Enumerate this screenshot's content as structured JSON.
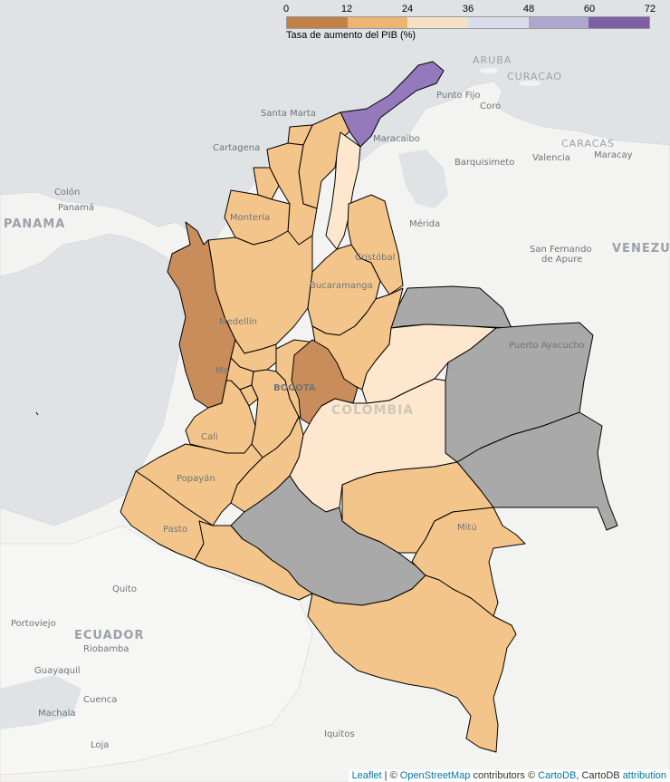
{
  "legend": {
    "title": "Tasa de aumento del PIB (%)",
    "ticks": [
      "0",
      "12",
      "24",
      "36",
      "48",
      "60",
      "72"
    ],
    "colors": [
      "#b35806",
      "#f1a340",
      "#fee0b6",
      "#d8daeb",
      "#998ec3",
      "#542788"
    ]
  },
  "fills": {
    "dark": "#c98c5b",
    "orange": "#f4c58a",
    "light": "#fde8cf",
    "purple": "#9479bd",
    "gray": "#a9a9a9",
    "land": "#f3f3f1",
    "water": "#dfe3e6"
  },
  "labels": {
    "aruba": "ARUBA",
    "curacao": "CURACAO",
    "punto_fijo": "Punto Fijo",
    "coro": "Coro",
    "santa_marta": "Santa Marta",
    "maracaibo": "Maracaibo",
    "cartagena": "Cartagena",
    "caracas": "CARACAS",
    "barquisimeto": "Barquisimeto",
    "valencia": "Valencia",
    "maracay": "Maracay",
    "colon": "Colón",
    "panama_city": "Panamá",
    "panama": "PANAMA",
    "monteria": "Montería",
    "merida": "Mérida",
    "cristobal": "Cristóbal",
    "san_fernando": "San Fernando",
    "de_apure": "de Apure",
    "venezuela": "VENEZUE",
    "bucaramanga": "Bucaramanga",
    "medellin": "Medellín",
    "puerto_ayacucho": "Puerto Ayacucho",
    "manizales": "Ma",
    "bogota": "BOGOTA",
    "colombia": "COLOMBIA",
    "cali": "Cali",
    "popayan": "Popayán",
    "pasto": "Pasto",
    "mitu": "Mitú",
    "quito": "Quito",
    "portoviejo": "Portoviejo",
    "ecuador": "ECUADOR",
    "riobamba": "Riobamba",
    "guayaquil": "Guayaquil",
    "cuenca": "Cuenca",
    "machala": "Machala",
    "iquitos": "Iquitos",
    "loja": "Loja"
  },
  "attribution": {
    "leaflet": "Leaflet",
    "sep": " | © ",
    "osm": "OpenStreetMap",
    "contrib": " contributors © ",
    "cartodb": "CartoDB",
    "comma": ", CartoDB ",
    "attr": "attribution"
  }
}
